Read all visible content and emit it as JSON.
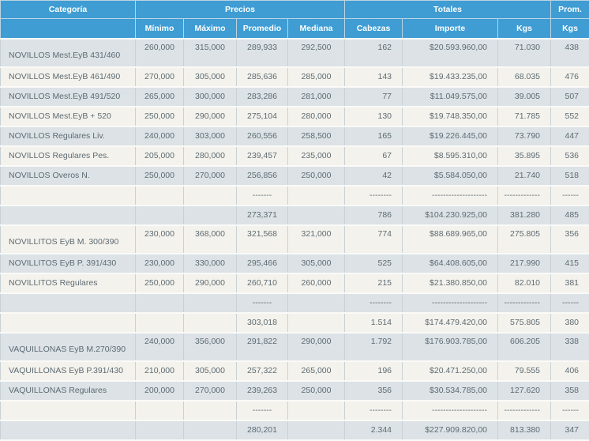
{
  "table": {
    "colors": {
      "header_bg": "#3f9dd3",
      "row_gray": "#dce2e6",
      "row_cream": "#f4f2ec",
      "text": "#5d6b73"
    },
    "header": {
      "categoria": "Categoría",
      "precios": "Precios",
      "totales": "Totales",
      "prom": "Prom.",
      "sub": [
        "Mínimo",
        "Máximo",
        "Promedio",
        "Mediana",
        "Cabezas",
        "Importe",
        "Kgs",
        "Kgs"
      ]
    },
    "columns": [
      "categoria",
      "minimo",
      "maximo",
      "promedio",
      "mediana",
      "cabezas",
      "importe",
      "kgs",
      "prom-kgs"
    ],
    "rows": [
      {
        "type": "data",
        "tall": true,
        "cells": [
          "NOVILLOS Mest.EyB 431/460",
          "260,000",
          "315,000",
          "289,933",
          "292,500",
          "162",
          "$20.593.960,00",
          "71.030",
          "438"
        ]
      },
      {
        "type": "data",
        "tall": false,
        "cells": [
          "NOVILLOS Mest.EyB 461/490",
          "270,000",
          "305,000",
          "285,636",
          "285,000",
          "143",
          "$19.433.235,00",
          "68.035",
          "476"
        ]
      },
      {
        "type": "data",
        "tall": false,
        "cells": [
          "NOVILLOS Mest.EyB 491/520",
          "265,000",
          "300,000",
          "283,286",
          "281,000",
          "77",
          "$11.049.575,00",
          "39.005",
          "507"
        ]
      },
      {
        "type": "data",
        "tall": false,
        "cells": [
          "NOVILLOS Mest.EyB + 520",
          "250,000",
          "290,000",
          "275,104",
          "280,000",
          "130",
          "$19.748.350,00",
          "71.785",
          "552"
        ]
      },
      {
        "type": "data",
        "tall": false,
        "cells": [
          "NOVILLOS Regulares Liv.",
          "240,000",
          "303,000",
          "260,556",
          "258,500",
          "165",
          "$19.226.445,00",
          "73.790",
          "447"
        ]
      },
      {
        "type": "data",
        "tall": false,
        "cells": [
          "NOVILLOS Regulares Pes.",
          "205,000",
          "280,000",
          "239,457",
          "235,000",
          "67",
          "$8.595.310,00",
          "35.895",
          "536"
        ]
      },
      {
        "type": "data",
        "tall": false,
        "cells": [
          "NOVILLOS Overos N.",
          "250,000",
          "270,000",
          "256,856",
          "250,000",
          "42",
          "$5.584.050,00",
          "21.740",
          "518"
        ]
      },
      {
        "type": "dashes",
        "tall": false,
        "cells": [
          "",
          "",
          "",
          "-------",
          "",
          "--------",
          "--------------------",
          "-------------",
          "------"
        ]
      },
      {
        "type": "subtotal",
        "tall": false,
        "cells": [
          "",
          "",
          "",
          "273,371",
          "",
          "786",
          "$104.230.925,00",
          "381.280",
          "485"
        ]
      },
      {
        "type": "data",
        "tall": true,
        "cells": [
          "NOVILLITOS EyB M. 300/390",
          "230,000",
          "368,000",
          "321,568",
          "321,000",
          "774",
          "$88.689.965,00",
          "275.805",
          "356"
        ]
      },
      {
        "type": "data",
        "tall": false,
        "cells": [
          "NOVILLITOS EyB P. 391/430",
          "230,000",
          "330,000",
          "295,466",
          "305,000",
          "525",
          "$64.408.605,00",
          "217.990",
          "415"
        ]
      },
      {
        "type": "data",
        "tall": false,
        "cells": [
          "NOVILLITOS Regulares",
          "250,000",
          "290,000",
          "260,710",
          "260,000",
          "215",
          "$21.380.850,00",
          "82.010",
          "381"
        ]
      },
      {
        "type": "dashes",
        "tall": false,
        "cells": [
          "",
          "",
          "",
          "-------",
          "",
          "--------",
          "--------------------",
          "-------------",
          "------"
        ]
      },
      {
        "type": "subtotal",
        "tall": false,
        "cells": [
          "",
          "",
          "",
          "303,018",
          "",
          "1.514",
          "$174.479.420,00",
          "575.805",
          "380"
        ]
      },
      {
        "type": "data",
        "tall": true,
        "cells": [
          "VAQUILLONAS EyB M.270/390",
          "240,000",
          "356,000",
          "291,822",
          "290,000",
          "1.792",
          "$176.903.785,00",
          "606.205",
          "338"
        ]
      },
      {
        "type": "data",
        "tall": false,
        "cells": [
          "VAQUILLONAS EyB P.391/430",
          "210,000",
          "305,000",
          "257,322",
          "265,000",
          "196",
          "$20.471.250,00",
          "79.555",
          "406"
        ]
      },
      {
        "type": "data",
        "tall": false,
        "cells": [
          "VAQUILLONAS Regulares",
          "200,000",
          "270,000",
          "239,263",
          "250,000",
          "356",
          "$30.534.785,00",
          "127.620",
          "358"
        ]
      },
      {
        "type": "dashes",
        "tall": false,
        "cells": [
          "",
          "",
          "",
          "-------",
          "",
          "--------",
          "--------------------",
          "-------------",
          "------"
        ]
      },
      {
        "type": "subtotal",
        "tall": false,
        "cells": [
          "",
          "",
          "",
          "280,201",
          "",
          "2.344",
          "$227.909.820,00",
          "813.380",
          "347"
        ]
      }
    ]
  }
}
